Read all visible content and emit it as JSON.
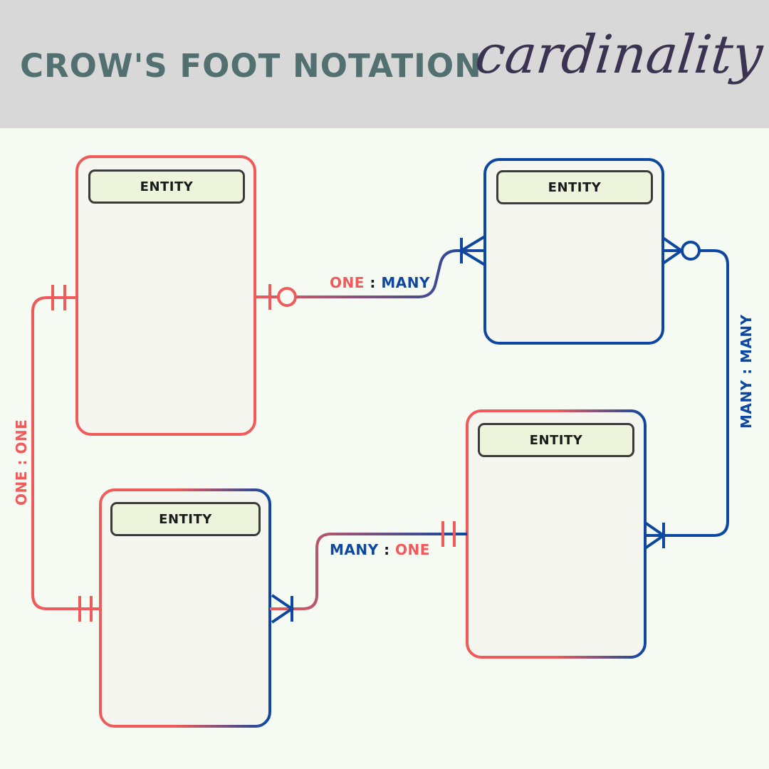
{
  "header": {
    "title": "CROW'S FOOT NOTATION",
    "subtitle": "cardinality"
  },
  "colors": {
    "one": "#f05a5a",
    "many": "#0d47a1",
    "header_bg": "#d8d8d8",
    "canvas_bg": "#f5fbf3",
    "title": "#52706f",
    "script": "#3a3452"
  },
  "entities": [
    {
      "header": "ENTITY"
    },
    {
      "header": "ENTITY"
    },
    {
      "header": "ENTITY"
    },
    {
      "header": "ENTITY"
    }
  ],
  "relationships": {
    "one_one": {
      "left": "ONE",
      "sep": ":",
      "right": "ONE"
    },
    "one_many": {
      "left": "ONE",
      "sep": ":",
      "right": "MANY"
    },
    "many_many": {
      "left": "MANY",
      "sep": ":",
      "right": "MANY"
    },
    "many_one": {
      "left": "MANY",
      "sep": ":",
      "right": "ONE"
    }
  }
}
